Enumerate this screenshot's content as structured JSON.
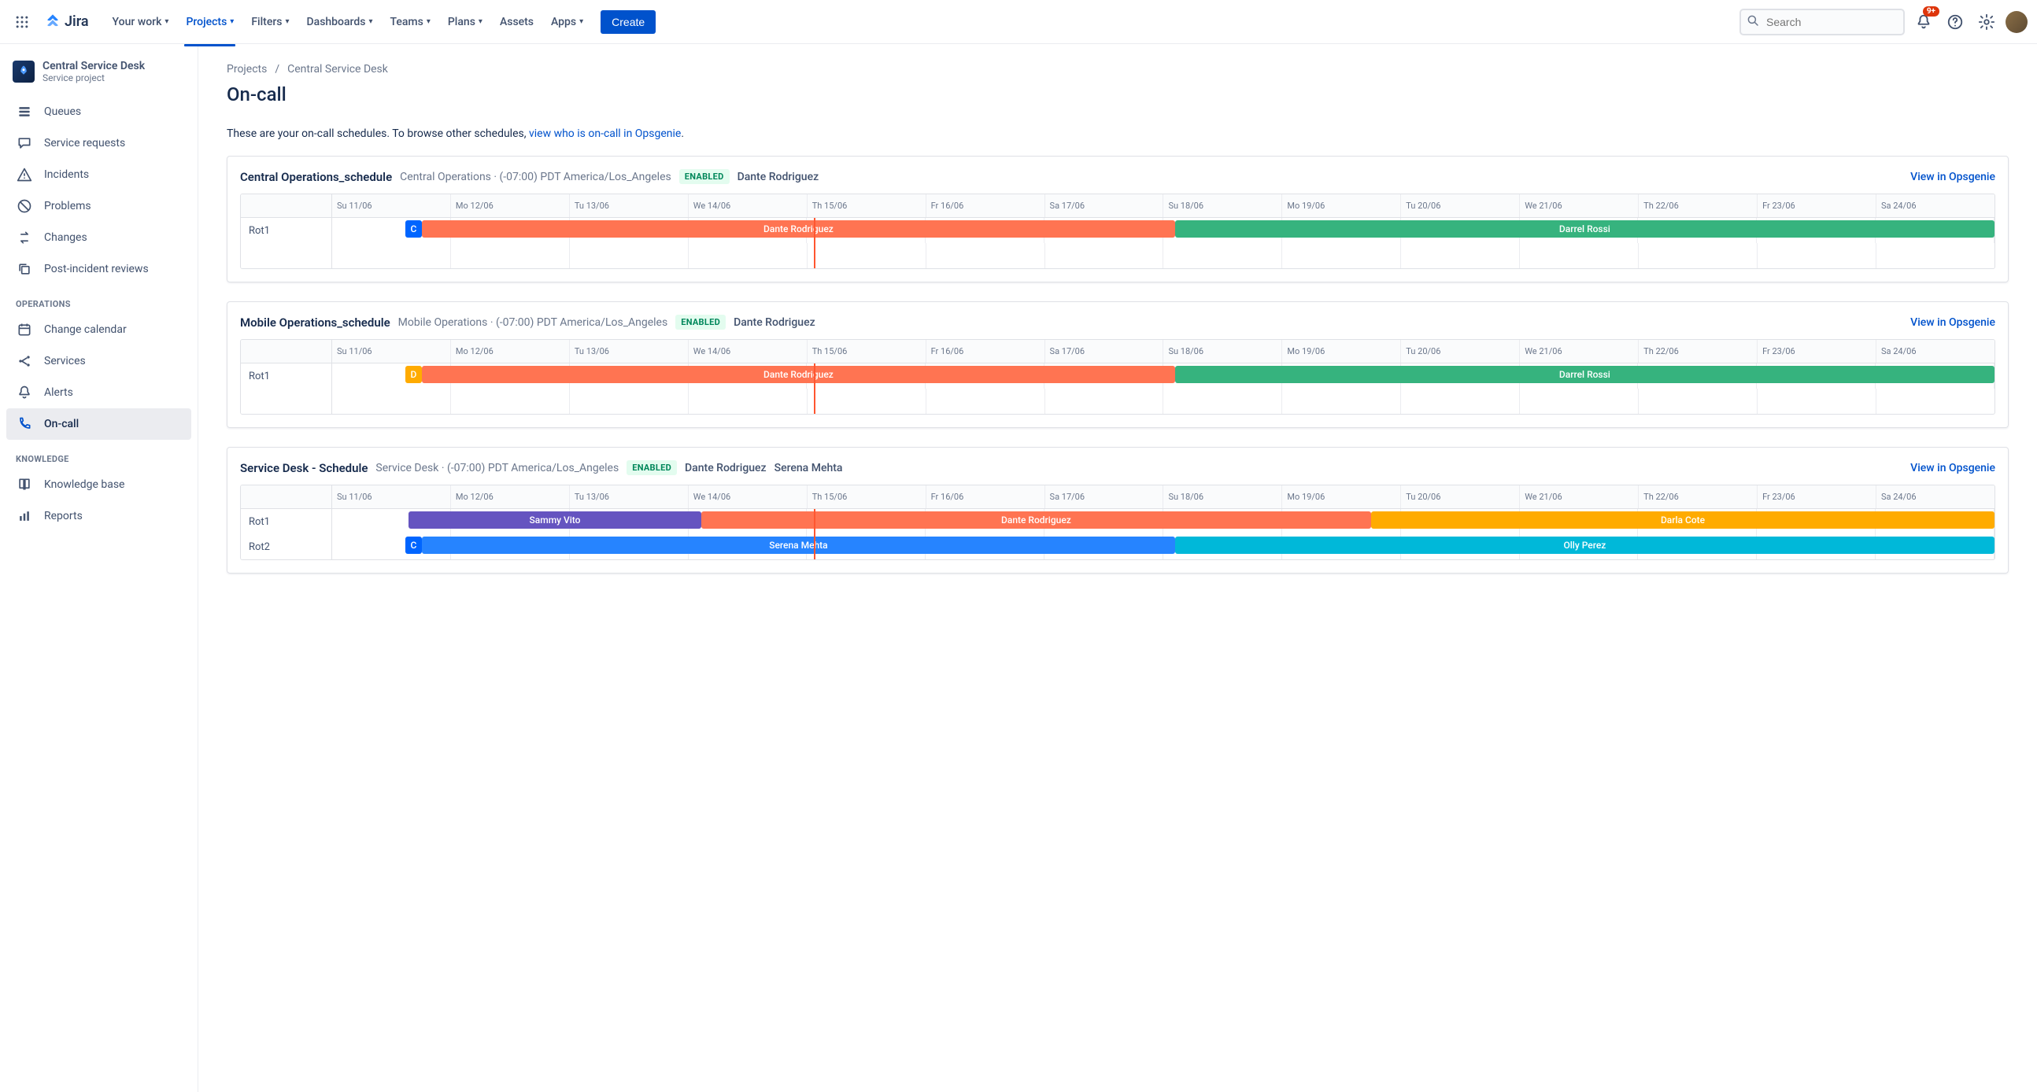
{
  "nav": {
    "product": "Jira",
    "items": [
      "Your work",
      "Projects",
      "Filters",
      "Dashboards",
      "Teams",
      "Plans",
      "Assets",
      "Apps"
    ],
    "active_index": 1,
    "no_chevron_index": 6,
    "create": "Create",
    "search_placeholder": "Search",
    "badge": "9+"
  },
  "project": {
    "name": "Central Service Desk",
    "type": "Service project"
  },
  "sidebar": {
    "main": [
      {
        "label": "Queues",
        "icon": "queues"
      },
      {
        "label": "Service requests",
        "icon": "chat"
      },
      {
        "label": "Incidents",
        "icon": "warning"
      },
      {
        "label": "Problems",
        "icon": "block"
      },
      {
        "label": "Changes",
        "icon": "changes"
      },
      {
        "label": "Post-incident reviews",
        "icon": "copy"
      }
    ],
    "operations_label": "OPERATIONS",
    "operations": [
      {
        "label": "Change calendar",
        "icon": "calendar"
      },
      {
        "label": "Services",
        "icon": "services"
      },
      {
        "label": "Alerts",
        "icon": "bell"
      },
      {
        "label": "On-call",
        "icon": "oncall",
        "active": true
      }
    ],
    "knowledge_label": "KNOWLEDGE",
    "knowledge": [
      {
        "label": "Knowledge base",
        "icon": "book"
      },
      {
        "label": "Reports",
        "icon": "reports"
      }
    ]
  },
  "breadcrumb": {
    "root": "Projects",
    "current": "Central Service Desk"
  },
  "page": {
    "title": "On-call",
    "desc_prefix": "These are your on-call schedules. To browse other schedules, ",
    "desc_link": "view who is on-call in Opsgenie",
    "desc_suffix": "."
  },
  "days": [
    "Su 11/06",
    "Mo 12/06",
    "Tu 13/06",
    "We 14/06",
    "Th 15/06",
    "Fr 16/06",
    "Sa 17/06",
    "Su 18/06",
    "Mo 19/06",
    "Tu 20/06",
    "We 21/06",
    "Th 22/06",
    "Fr 23/06",
    "Sa 24/06"
  ],
  "now_position_pct": 29.0,
  "view_link_label": "View in Opsgenie",
  "enabled_label": "ENABLED",
  "schedules": [
    {
      "name": "Central Operations_schedule",
      "meta": "Central Operations · (-07:00) PDT America/Los_Angeles",
      "people": [
        "Dante Rodriguez"
      ],
      "rows": [
        {
          "label": "Rot1",
          "bars": [
            {
              "text": "C",
              "color": "#0065FF",
              "left_pct": 4.4,
              "width_pct": 1.0
            },
            {
              "text": "Dante Rodriguez",
              "color": "#FF7452",
              "left_pct": 5.4,
              "width_pct": 45.3
            },
            {
              "text": "Darrel Rossi",
              "color": "#36B37E",
              "left_pct": 50.7,
              "width_pct": 49.3
            }
          ]
        },
        {
          "label": "",
          "bars": []
        }
      ]
    },
    {
      "name": "Mobile Operations_schedule",
      "meta": "Mobile Operations · (-07:00) PDT America/Los_Angeles",
      "people": [
        "Dante Rodriguez"
      ],
      "rows": [
        {
          "label": "Rot1",
          "bars": [
            {
              "text": "D",
              "color": "#FFAB00",
              "left_pct": 4.4,
              "width_pct": 1.0
            },
            {
              "text": "Dante Rodriguez",
              "color": "#FF7452",
              "left_pct": 5.4,
              "width_pct": 45.3
            },
            {
              "text": "Darrel Rossi",
              "color": "#36B37E",
              "left_pct": 50.7,
              "width_pct": 49.3
            }
          ]
        },
        {
          "label": "",
          "bars": []
        }
      ]
    },
    {
      "name": "Service Desk - Schedule",
      "meta": "Service Desk · (-07:00) PDT America/Los_Angeles",
      "people": [
        "Dante Rodriguez",
        "Serena Mehta"
      ],
      "rows": [
        {
          "label": "Rot1",
          "bars": [
            {
              "text": "Sammy Vito",
              "color": "#6554C0",
              "left_pct": 4.6,
              "width_pct": 17.6
            },
            {
              "text": "Dante Rodriguez",
              "color": "#FF7452",
              "left_pct": 22.2,
              "width_pct": 40.3
            },
            {
              "text": "Darla Cote",
              "color": "#FFAB00",
              "left_pct": 62.5,
              "width_pct": 37.5
            }
          ]
        },
        {
          "label": "Rot2",
          "bars": [
            {
              "text": "C",
              "color": "#0065FF",
              "left_pct": 4.4,
              "width_pct": 1.0
            },
            {
              "text": "Serena Mehta",
              "color": "#2684FF",
              "left_pct": 5.4,
              "width_pct": 45.3
            },
            {
              "text": "Olly Perez",
              "color": "#00B8D9",
              "left_pct": 50.7,
              "width_pct": 49.3
            }
          ]
        }
      ]
    }
  ]
}
